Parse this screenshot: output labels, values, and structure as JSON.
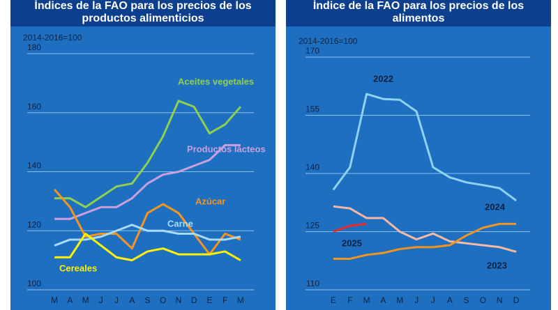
{
  "chart_data": [
    {
      "type": "line",
      "title": "Índices de la FAO para los precios de los productos alimenticios",
      "subtitle": "2014-2016=100",
      "categories": [
        "M",
        "A",
        "M",
        "J",
        "J",
        "A",
        "S",
        "O",
        "N",
        "D",
        "E",
        "F",
        "M"
      ],
      "ylim": [
        100,
        180
      ],
      "yticks": [
        100,
        120,
        140,
        160,
        180
      ],
      "grid": true,
      "series": [
        {
          "name": "Aceites vegetales",
          "color": "#8fd14f",
          "values": [
            131,
            131,
            128,
            131.5,
            135,
            136,
            143,
            152,
            164,
            162,
            153,
            156,
            162
          ]
        },
        {
          "name": "Productos lácteos",
          "color": "#c9a0dc",
          "values": [
            124,
            124,
            126,
            128,
            128,
            131,
            136,
            139,
            140,
            142,
            144,
            149,
            149
          ]
        },
        {
          "name": "Azúcar",
          "color": "#f7941d",
          "values": [
            134,
            128,
            118,
            119,
            119,
            114,
            126,
            129,
            126,
            119,
            112,
            119,
            117
          ]
        },
        {
          "name": "Carne",
          "color": "#a8dcf4",
          "values": [
            115,
            117,
            117,
            118,
            120,
            122,
            120,
            120,
            119,
            119,
            117,
            117,
            118
          ]
        },
        {
          "name": "Cereales",
          "color": "#fff200",
          "values": [
            111,
            111,
            119,
            115,
            111,
            110,
            113,
            114,
            112,
            112,
            112,
            113,
            110
          ]
        }
      ]
    },
    {
      "type": "line",
      "title": "Índice de la FAO para los precios de los alimentos",
      "subtitle": "2014-2016=100",
      "categories": [
        "E",
        "F",
        "M",
        "A",
        "M",
        "J",
        "J",
        "A",
        "S",
        "O",
        "N",
        "D"
      ],
      "ylim": [
        110,
        170
      ],
      "yticks": [
        110,
        125,
        140,
        155,
        170
      ],
      "grid": true,
      "series": [
        {
          "name": "2022",
          "color": "#8fd3f4",
          "values": [
            135.8,
            141.6,
            160.5,
            159.2,
            159,
            156,
            141.6,
            139,
            137.7,
            137,
            136.2,
            133
          ]
        },
        {
          "name": "2023",
          "color": "#f6b9a6",
          "values": [
            131.5,
            131,
            128.5,
            128.5,
            125,
            123,
            124.5,
            122.5,
            122,
            121.5,
            121,
            119.8
          ]
        },
        {
          "name": "2024",
          "color": "#f7941d",
          "values": [
            118,
            118,
            119,
            119.5,
            120.5,
            121,
            121,
            121.5,
            124,
            126,
            127,
            127
          ]
        },
        {
          "name": "2025",
          "color": "#ee2a24",
          "values": [
            125,
            126.5,
            127,
            null,
            null,
            null,
            null,
            null,
            null,
            null,
            null,
            null
          ]
        }
      ]
    }
  ]
}
